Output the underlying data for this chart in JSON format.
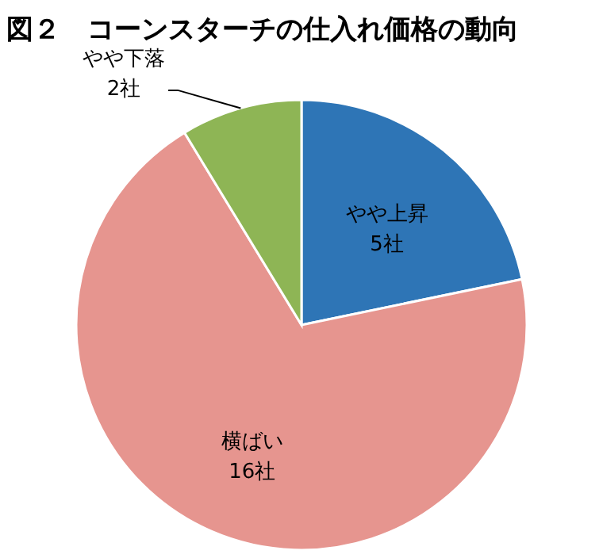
{
  "chart_data": {
    "type": "pie",
    "title": "図２　コーンスターチの仕入れ価格の動向",
    "categories": [
      "やや上昇",
      "横ばい",
      "やや下落"
    ],
    "values": [
      5,
      16,
      2
    ],
    "value_labels": [
      "5社",
      "16社",
      "2社"
    ],
    "colors": [
      "#2e75b6",
      "#e6958f",
      "#8eb555"
    ]
  }
}
